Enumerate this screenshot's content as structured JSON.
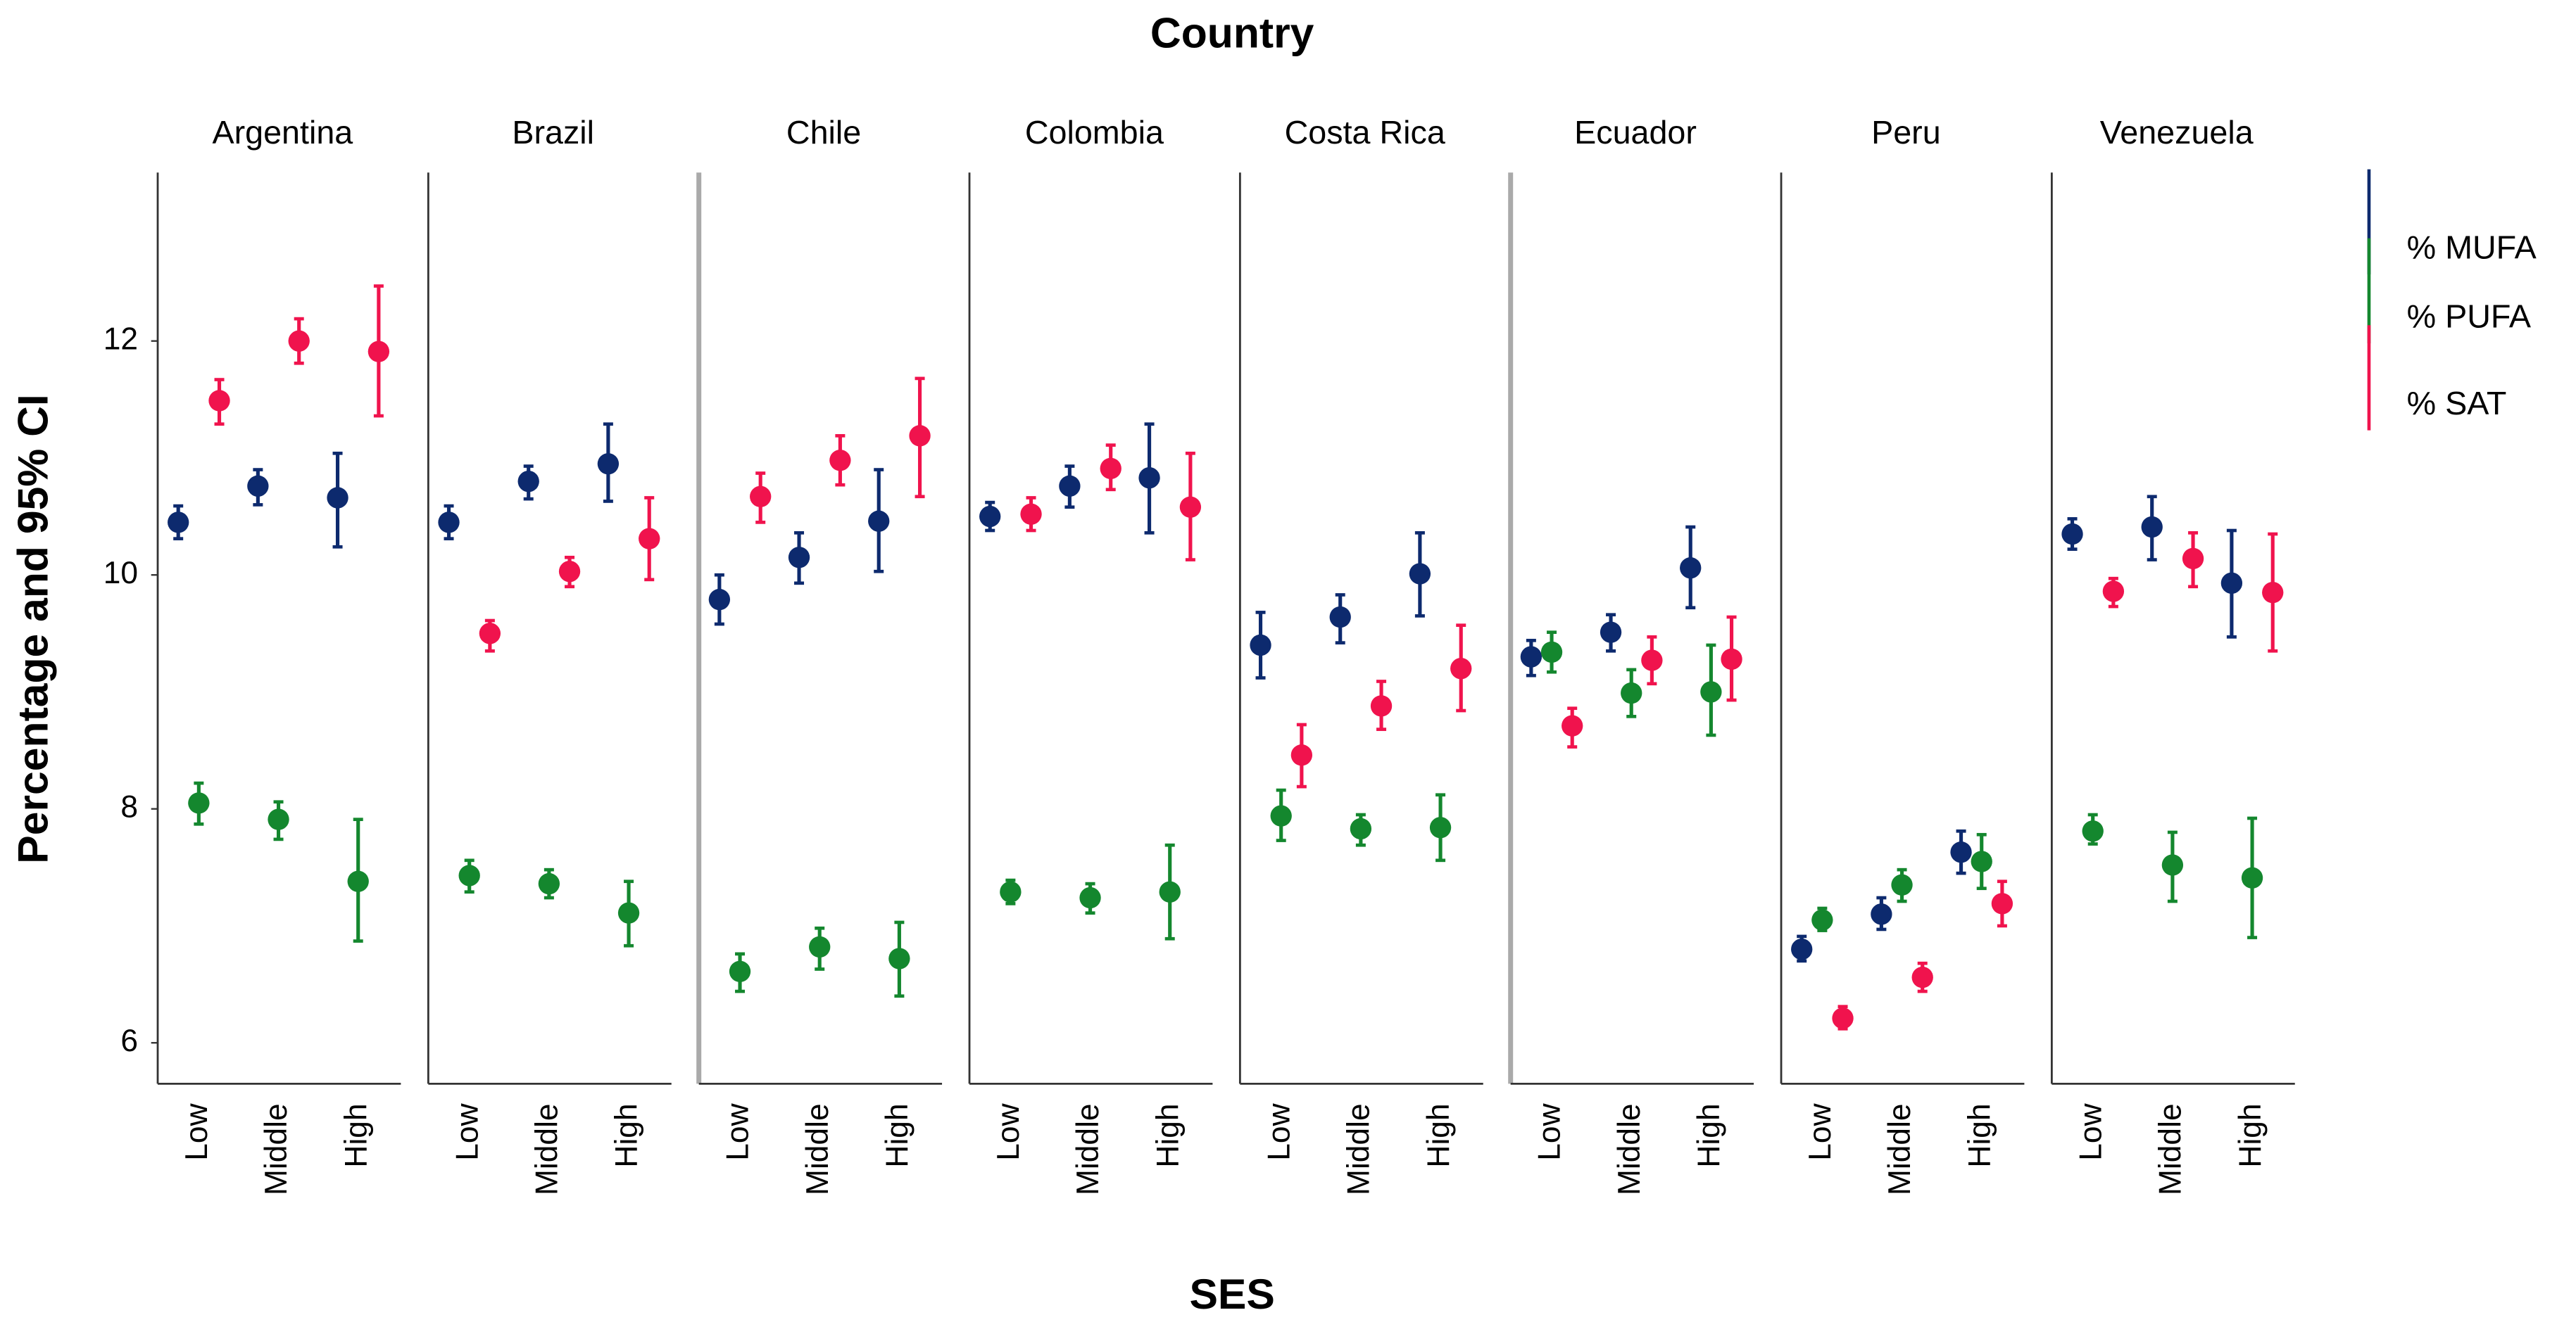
{
  "chart_data": {
    "type": "errorbar",
    "title": "Country",
    "x_label": "SES",
    "y_label": "Percentage and 95% CI",
    "facets": [
      "Argentina",
      "Brazil",
      "Chile",
      "Colombia",
      "Costa Rica",
      "Ecuador",
      "Peru",
      "Venezuela"
    ],
    "categories": [
      "Low",
      "Middle",
      "High"
    ],
    "ylim": [
      5.65,
      13.44
    ],
    "yticks": [
      6,
      8,
      10,
      12
    ],
    "series": [
      {
        "name": "% MUFA",
        "color": "#0d2a6e",
        "values": [
          [
            10.45,
            10.76,
            10.66
          ],
          [
            10.45,
            10.8,
            10.95
          ],
          [
            9.79,
            10.15,
            10.46
          ],
          [
            10.5,
            10.76,
            10.83
          ],
          [
            9.4,
            9.64,
            10.01
          ],
          [
            9.3,
            9.51,
            10.06
          ],
          [
            6.8,
            7.1,
            7.63
          ],
          [
            10.35,
            10.41,
            9.93
          ]
        ],
        "lower": [
          [
            10.31,
            10.6,
            10.24
          ],
          [
            10.31,
            10.65,
            10.63
          ],
          [
            9.58,
            9.93,
            10.03
          ],
          [
            10.38,
            10.58,
            10.36
          ],
          [
            9.12,
            9.42,
            9.65
          ],
          [
            9.14,
            9.35,
            9.72
          ],
          [
            6.7,
            6.97,
            7.45
          ],
          [
            10.22,
            10.13,
            9.47
          ]
        ],
        "upper": [
          [
            10.59,
            10.9,
            11.04
          ],
          [
            10.59,
            10.93,
            11.29
          ],
          [
            10.0,
            10.36,
            10.9
          ],
          [
            10.62,
            10.93,
            11.29
          ],
          [
            9.68,
            9.83,
            10.36
          ],
          [
            9.44,
            9.66,
            10.41
          ],
          [
            6.91,
            7.24,
            7.81
          ],
          [
            10.48,
            10.67,
            10.38
          ]
        ]
      },
      {
        "name": "% PUFA",
        "color": "#14872e",
        "values": [
          [
            8.05,
            7.91,
            7.38
          ],
          [
            7.43,
            7.36,
            7.11
          ],
          [
            6.61,
            6.82,
            6.72
          ],
          [
            7.29,
            7.24,
            7.29
          ],
          [
            7.94,
            7.83,
            7.84
          ],
          [
            9.34,
            8.99,
            9.0
          ],
          [
            7.05,
            7.35,
            7.55
          ],
          [
            7.81,
            7.52,
            7.41
          ]
        ],
        "lower": [
          [
            7.87,
            7.74,
            6.87
          ],
          [
            7.29,
            7.24,
            6.83
          ],
          [
            6.44,
            6.63,
            6.4
          ],
          [
            7.19,
            7.11,
            6.89
          ],
          [
            7.73,
            7.69,
            7.56
          ],
          [
            9.17,
            8.79,
            8.63
          ],
          [
            6.96,
            7.21,
            7.32
          ],
          [
            7.7,
            7.21,
            6.9
          ]
        ],
        "upper": [
          [
            8.22,
            8.06,
            7.91
          ],
          [
            7.56,
            7.48,
            7.38
          ],
          [
            6.76,
            6.98,
            7.03
          ],
          [
            7.39,
            7.36,
            7.69
          ],
          [
            8.16,
            7.95,
            8.12
          ],
          [
            9.51,
            9.19,
            9.4
          ],
          [
            7.15,
            7.48,
            7.78
          ],
          [
            7.95,
            7.8,
            7.92
          ]
        ]
      },
      {
        "name": "% SAT",
        "color": "#f0134d",
        "values": [
          [
            11.49,
            12.0,
            11.91
          ],
          [
            9.5,
            10.03,
            10.31
          ],
          [
            10.67,
            10.98,
            11.19
          ],
          [
            10.52,
            10.91,
            10.58
          ],
          [
            8.46,
            8.88,
            9.2
          ],
          [
            8.71,
            9.27,
            9.28
          ],
          [
            6.21,
            6.56,
            7.19
          ],
          [
            9.86,
            10.14,
            9.85
          ]
        ],
        "lower": [
          [
            11.29,
            11.81,
            11.36
          ],
          [
            9.35,
            9.9,
            9.96
          ],
          [
            10.45,
            10.77,
            10.67
          ],
          [
            10.38,
            10.73,
            10.13
          ],
          [
            8.19,
            8.68,
            8.84
          ],
          [
            8.53,
            9.07,
            8.93
          ],
          [
            6.12,
            6.44,
            7.0
          ],
          [
            9.73,
            9.9,
            9.35
          ]
        ],
        "upper": [
          [
            11.67,
            12.19,
            12.47
          ],
          [
            9.61,
            10.15,
            10.66
          ],
          [
            10.87,
            11.19,
            11.68
          ],
          [
            10.66,
            11.11,
            11.04
          ],
          [
            8.72,
            9.09,
            9.57
          ],
          [
            8.86,
            9.47,
            9.64
          ],
          [
            6.31,
            6.68,
            7.38
          ],
          [
            9.97,
            10.36,
            10.35
          ]
        ]
      }
    ]
  }
}
